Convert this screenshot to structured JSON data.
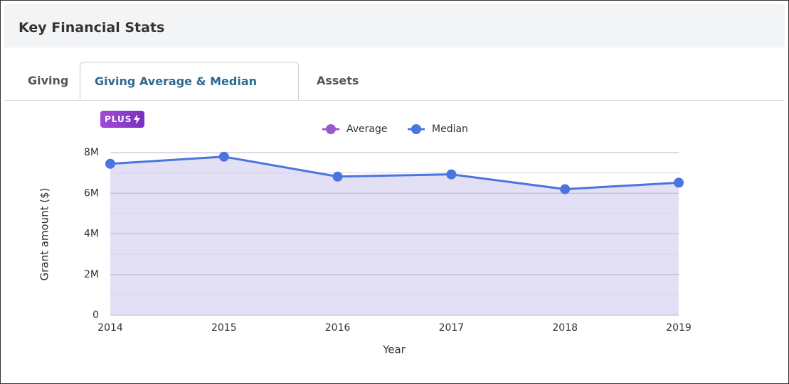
{
  "header": {
    "title": "Key Financial Stats"
  },
  "tabs": [
    {
      "label": "Giving"
    },
    {
      "label": "Giving Average & Median",
      "badge": "PLUS"
    },
    {
      "label": "Assets"
    }
  ],
  "chart_data": {
    "type": "line",
    "categories": [
      "2014",
      "2015",
      "2016",
      "2017",
      "2018",
      "2019"
    ],
    "series": [
      {
        "name": "Average",
        "color": "#9b59c9",
        "values": [
          null,
          null,
          null,
          null,
          null,
          null
        ]
      },
      {
        "name": "Median",
        "color": "#4a74e0",
        "values": [
          7450000,
          7800000,
          6820000,
          6930000,
          6200000,
          6520000
        ]
      }
    ],
    "ylim": [
      0,
      8000000
    ],
    "yticks": [
      {
        "value": 0,
        "label": "0"
      },
      {
        "value": 2000000,
        "label": "2M"
      },
      {
        "value": 4000000,
        "label": "4M"
      },
      {
        "value": 6000000,
        "label": "6M"
      },
      {
        "value": 8000000,
        "label": "8M"
      }
    ],
    "minor_yticks": [
      1000000,
      3000000,
      5000000,
      7000000
    ],
    "ylabel": "Grant amount ($)",
    "xlabel": "Year",
    "area_fill": "#e3e0f5",
    "grid": true,
    "legend": "top"
  }
}
